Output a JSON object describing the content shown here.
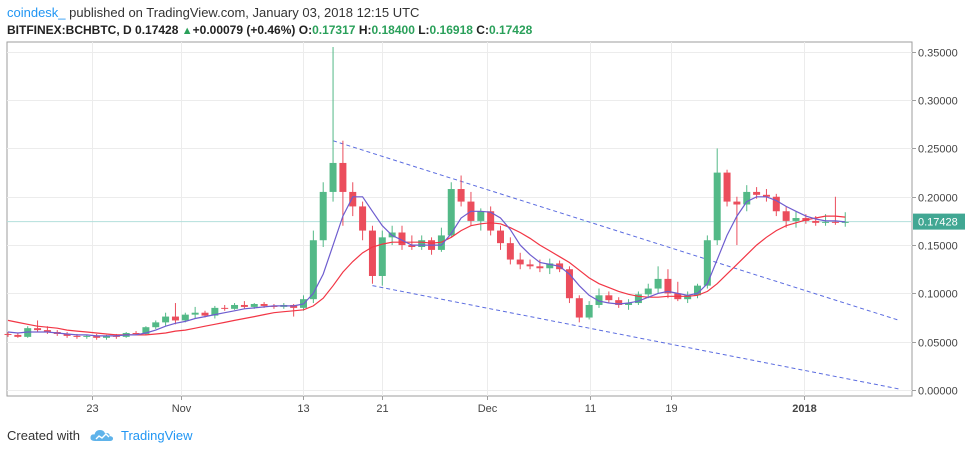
{
  "header": {
    "publisher": "coindesk_",
    "published_text": "published on TradingView.com, January 03, 2018 12:15 UTC",
    "symbol": "BITFINEX:BCHBTC, D",
    "last": "0.17428",
    "change_arrow": "▲",
    "change": "+0.00079 (+0.46%)",
    "o_label": "O:",
    "o_val": "0.17317",
    "h_label": "H:",
    "h_val": "0.18400",
    "l_label": "L:",
    "l_val": "0.16918",
    "c_label": "C:",
    "c_val": "0.17428"
  },
  "footer": {
    "created_with": "Created with",
    "brand": "TradingView"
  },
  "chart_data": {
    "type": "candlestick",
    "x_tick_labels": [
      "23",
      "Nov",
      "13",
      "21",
      "Dec",
      "11",
      "19",
      "2018"
    ],
    "y_tick_labels": [
      "0.35000",
      "0.30000",
      "0.25000",
      "0.20000",
      "0.15000",
      "0.10000",
      "0.05000",
      "0.00000"
    ],
    "ylim": [
      0,
      0.355
    ],
    "last_price_label": "0.17428",
    "last_price": 0.17428,
    "colors": {
      "up": "#53b987",
      "down": "#eb4d5c",
      "ma_fast": "#6e5dcf",
      "ma_slow": "#f23645",
      "trend": "#5b6ce0",
      "last_line": "#b2dfdb",
      "last_label_bg": "#41a793"
    },
    "candles": [
      [
        0.058,
        0.06,
        0.055,
        0.057
      ],
      [
        0.057,
        0.059,
        0.054,
        0.055
      ],
      [
        0.055,
        0.066,
        0.054,
        0.064
      ],
      [
        0.064,
        0.072,
        0.06,
        0.062
      ],
      [
        0.062,
        0.066,
        0.058,
        0.06
      ],
      [
        0.06,
        0.062,
        0.056,
        0.058
      ],
      [
        0.058,
        0.06,
        0.054,
        0.056
      ],
      [
        0.056,
        0.058,
        0.053,
        0.055
      ],
      [
        0.055,
        0.057,
        0.053,
        0.056
      ],
      [
        0.056,
        0.058,
        0.052,
        0.054
      ],
      [
        0.054,
        0.057,
        0.052,
        0.056
      ],
      [
        0.056,
        0.058,
        0.053,
        0.055
      ],
      [
        0.055,
        0.06,
        0.054,
        0.059
      ],
      [
        0.059,
        0.061,
        0.057,
        0.058
      ],
      [
        0.058,
        0.066,
        0.057,
        0.065
      ],
      [
        0.065,
        0.072,
        0.063,
        0.07
      ],
      [
        0.07,
        0.08,
        0.066,
        0.076
      ],
      [
        0.076,
        0.09,
        0.068,
        0.072
      ],
      [
        0.072,
        0.08,
        0.07,
        0.078
      ],
      [
        0.078,
        0.086,
        0.074,
        0.08
      ],
      [
        0.08,
        0.082,
        0.075,
        0.077
      ],
      [
        0.077,
        0.087,
        0.074,
        0.085
      ],
      [
        0.085,
        0.088,
        0.082,
        0.084
      ],
      [
        0.084,
        0.09,
        0.083,
        0.088
      ],
      [
        0.088,
        0.092,
        0.084,
        0.086
      ],
      [
        0.086,
        0.09,
        0.084,
        0.089
      ],
      [
        0.089,
        0.091,
        0.085,
        0.087
      ],
      [
        0.087,
        0.089,
        0.084,
        0.086
      ],
      [
        0.086,
        0.09,
        0.084,
        0.088
      ],
      [
        0.088,
        0.089,
        0.076,
        0.085
      ],
      [
        0.085,
        0.098,
        0.082,
        0.094
      ],
      [
        0.094,
        0.165,
        0.09,
        0.155
      ],
      [
        0.155,
        0.215,
        0.148,
        0.205
      ],
      [
        0.205,
        0.355,
        0.195,
        0.235
      ],
      [
        0.235,
        0.258,
        0.17,
        0.205
      ],
      [
        0.205,
        0.215,
        0.18,
        0.19
      ],
      [
        0.19,
        0.195,
        0.155,
        0.165
      ],
      [
        0.165,
        0.17,
        0.11,
        0.118
      ],
      [
        0.118,
        0.165,
        0.108,
        0.158
      ],
      [
        0.158,
        0.17,
        0.15,
        0.163
      ],
      [
        0.163,
        0.17,
        0.145,
        0.15
      ],
      [
        0.15,
        0.16,
        0.145,
        0.148
      ],
      [
        0.148,
        0.16,
        0.145,
        0.155
      ],
      [
        0.155,
        0.158,
        0.14,
        0.145
      ],
      [
        0.145,
        0.168,
        0.143,
        0.16
      ],
      [
        0.16,
        0.215,
        0.158,
        0.208
      ],
      [
        0.208,
        0.222,
        0.19,
        0.195
      ],
      [
        0.195,
        0.205,
        0.17,
        0.175
      ],
      [
        0.175,
        0.188,
        0.165,
        0.185
      ],
      [
        0.185,
        0.19,
        0.16,
        0.165
      ],
      [
        0.165,
        0.17,
        0.145,
        0.152
      ],
      [
        0.152,
        0.158,
        0.13,
        0.135
      ],
      [
        0.135,
        0.142,
        0.125,
        0.13
      ],
      [
        0.13,
        0.135,
        0.125,
        0.128
      ],
      [
        0.128,
        0.135,
        0.122,
        0.126
      ],
      [
        0.126,
        0.136,
        0.12,
        0.131
      ],
      [
        0.131,
        0.134,
        0.122,
        0.125
      ],
      [
        0.125,
        0.128,
        0.09,
        0.095
      ],
      [
        0.095,
        0.098,
        0.07,
        0.075
      ],
      [
        0.075,
        0.092,
        0.073,
        0.088
      ],
      [
        0.088,
        0.105,
        0.085,
        0.098
      ],
      [
        0.098,
        0.102,
        0.09,
        0.093
      ],
      [
        0.093,
        0.096,
        0.085,
        0.088
      ],
      [
        0.088,
        0.094,
        0.083,
        0.09
      ],
      [
        0.09,
        0.102,
        0.088,
        0.099
      ],
      [
        0.099,
        0.11,
        0.095,
        0.105
      ],
      [
        0.105,
        0.128,
        0.1,
        0.115
      ],
      [
        0.115,
        0.125,
        0.095,
        0.1
      ],
      [
        0.1,
        0.112,
        0.092,
        0.094
      ],
      [
        0.094,
        0.102,
        0.09,
        0.098
      ],
      [
        0.098,
        0.11,
        0.095,
        0.108
      ],
      [
        0.108,
        0.16,
        0.105,
        0.155
      ],
      [
        0.155,
        0.25,
        0.15,
        0.225
      ],
      [
        0.225,
        0.228,
        0.19,
        0.195
      ],
      [
        0.195,
        0.2,
        0.15,
        0.192
      ],
      [
        0.192,
        0.212,
        0.185,
        0.205
      ],
      [
        0.205,
        0.21,
        0.198,
        0.202
      ],
      [
        0.202,
        0.208,
        0.195,
        0.2
      ],
      [
        0.2,
        0.203,
        0.18,
        0.185
      ],
      [
        0.185,
        0.19,
        0.168,
        0.175
      ],
      [
        0.175,
        0.185,
        0.168,
        0.178
      ],
      [
        0.178,
        0.182,
        0.172,
        0.175
      ],
      [
        0.175,
        0.18,
        0.17,
        0.173
      ],
      [
        0.173,
        0.182,
        0.17,
        0.174
      ],
      [
        0.174,
        0.2,
        0.171,
        0.173
      ],
      [
        0.173,
        0.184,
        0.169,
        0.174
      ]
    ],
    "ma_fast": [
      0.06,
      0.059,
      0.06,
      0.06,
      0.06,
      0.059,
      0.058,
      0.057,
      0.057,
      0.056,
      0.056,
      0.056,
      0.057,
      0.057,
      0.059,
      0.062,
      0.066,
      0.069,
      0.071,
      0.074,
      0.076,
      0.078,
      0.08,
      0.082,
      0.084,
      0.085,
      0.086,
      0.087,
      0.087,
      0.087,
      0.089,
      0.1,
      0.12,
      0.15,
      0.18,
      0.2,
      0.2,
      0.185,
      0.17,
      0.16,
      0.155,
      0.15,
      0.15,
      0.15,
      0.15,
      0.162,
      0.178,
      0.185,
      0.185,
      0.184,
      0.178,
      0.166,
      0.15,
      0.14,
      0.132,
      0.13,
      0.128,
      0.12,
      0.108,
      0.098,
      0.092,
      0.09,
      0.089,
      0.09,
      0.092,
      0.096,
      0.1,
      0.102,
      0.1,
      0.098,
      0.1,
      0.11,
      0.135,
      0.16,
      0.18,
      0.195,
      0.2,
      0.2,
      0.196,
      0.19,
      0.185,
      0.18,
      0.177,
      0.175,
      0.175,
      0.174
    ],
    "ma_slow": [
      0.072,
      0.07,
      0.068,
      0.066,
      0.065,
      0.064,
      0.062,
      0.061,
      0.06,
      0.059,
      0.058,
      0.057,
      0.057,
      0.057,
      0.057,
      0.058,
      0.059,
      0.061,
      0.062,
      0.064,
      0.066,
      0.068,
      0.07,
      0.072,
      0.074,
      0.076,
      0.078,
      0.08,
      0.081,
      0.082,
      0.083,
      0.087,
      0.095,
      0.108,
      0.122,
      0.133,
      0.142,
      0.148,
      0.151,
      0.153,
      0.153,
      0.153,
      0.153,
      0.152,
      0.153,
      0.158,
      0.165,
      0.17,
      0.172,
      0.173,
      0.172,
      0.168,
      0.163,
      0.157,
      0.15,
      0.144,
      0.138,
      0.132,
      0.124,
      0.116,
      0.11,
      0.106,
      0.102,
      0.099,
      0.097,
      0.096,
      0.096,
      0.097,
      0.097,
      0.097,
      0.098,
      0.102,
      0.11,
      0.12,
      0.13,
      0.14,
      0.15,
      0.158,
      0.165,
      0.17,
      0.173,
      0.176,
      0.178,
      0.18,
      0.18,
      0.179
    ],
    "trendlines": [
      {
        "from": [
          33,
          0.258
        ],
        "to": [
          90.5,
          0.072
        ]
      },
      {
        "from": [
          37,
          0.108
        ],
        "to": [
          90.5,
          0.001
        ]
      }
    ]
  }
}
